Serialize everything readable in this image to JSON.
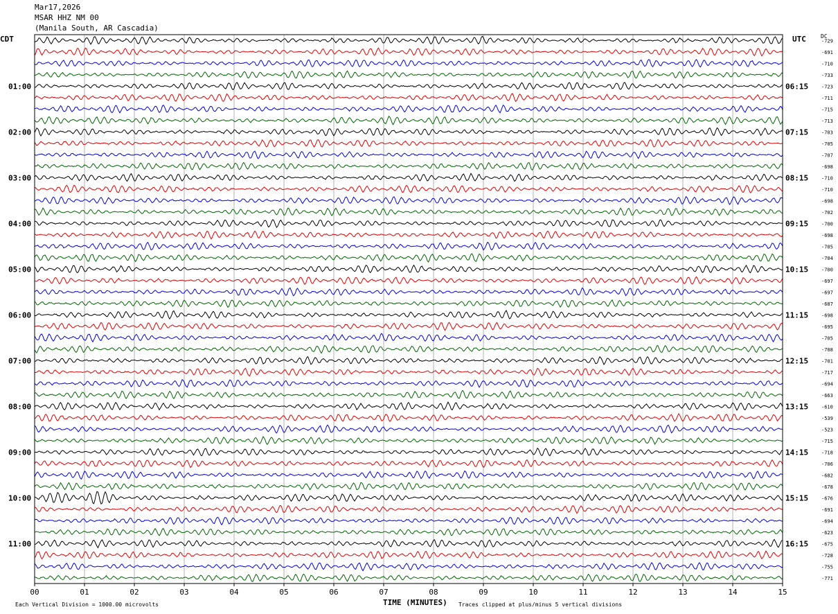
{
  "header": {
    "date": "Mar17,2026",
    "station": "MSAR HHZ NM 00",
    "location": "(Manila South, AR Cascadia)"
  },
  "axes": {
    "left_zone": "CDT",
    "right_zone": "UTC",
    "dc_label": "DC",
    "xlabel": "TIME (MINUTES)",
    "scale_note": "Each Vertical Division = 1000.00 microvolts",
    "clip_note": "Traces clipped at plus/minus 5 vertical divisions"
  },
  "chart_data": {
    "type": "line",
    "xlim": [
      0,
      15
    ],
    "x_ticks": [
      "00",
      "01",
      "02",
      "03",
      "04",
      "05",
      "06",
      "07",
      "08",
      "09",
      "10",
      "11",
      "12",
      "13",
      "14",
      "15"
    ],
    "row_count": 48,
    "series_colors": [
      "#000000",
      "#e00000",
      "#0000e0",
      "#006400"
    ],
    "left_hour_labels": [
      "01:00",
      "02:00",
      "03:00",
      "04:00",
      "05:00",
      "06:00",
      "07:00",
      "08:00",
      "09:00",
      "10:00",
      "11:00"
    ],
    "right_hour_labels": [
      "06:15",
      "07:15",
      "08:15",
      "09:15",
      "10:15",
      "11:15",
      "12:15",
      "13:15",
      "14:15",
      "15:15",
      "16:15"
    ],
    "dc_offsets": [
      "729",
      "691",
      "710",
      "733",
      "723",
      "711",
      "715",
      "713",
      "703",
      "705",
      "707",
      "698",
      "710",
      "710",
      "698",
      "702",
      "700",
      "698",
      "705",
      "704",
      "700",
      "697",
      "697",
      "687",
      "698",
      "695",
      "705",
      "708",
      "701",
      "717",
      "694",
      "663",
      "610",
      "539",
      "523",
      "715",
      "718",
      "706",
      "682",
      "678",
      "676",
      "691",
      "694",
      "623",
      "675",
      "728",
      "755",
      "771"
    ],
    "events": [
      {
        "row": 40,
        "start_min": 0.0,
        "peak_min": 1.15,
        "end_min": 2.6,
        "note": "largest amplitude burst"
      }
    ]
  }
}
